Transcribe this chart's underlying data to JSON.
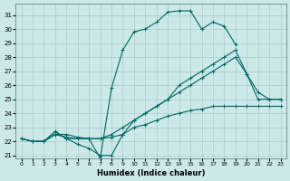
{
  "xlabel": "Humidex (Indice chaleur)",
  "xlim": [
    -0.5,
    23.5
  ],
  "ylim": [
    20.8,
    31.8
  ],
  "yticks": [
    21,
    22,
    23,
    24,
    25,
    26,
    27,
    28,
    29,
    30,
    31
  ],
  "xticks": [
    0,
    1,
    2,
    3,
    4,
    5,
    6,
    7,
    8,
    9,
    10,
    11,
    12,
    13,
    14,
    15,
    16,
    17,
    18,
    19,
    20,
    21,
    22,
    23
  ],
  "bg_color": "#cce8e8",
  "grid_color": "#aacccc",
  "line_color": "#006666",
  "lines": [
    {
      "x": [
        0,
        1,
        2,
        3,
        4,
        5,
        6,
        7,
        8,
        9,
        10,
        11,
        12,
        13,
        14,
        15,
        16,
        17,
        18,
        19
      ],
      "y": [
        22.2,
        22,
        22,
        22.7,
        22.2,
        22.2,
        22.2,
        20.8,
        25.8,
        28.5,
        29.8,
        30.0,
        30.5,
        31.2,
        31.3,
        31.3,
        30.0,
        30.5,
        30.2,
        28.9
      ]
    },
    {
      "x": [
        0,
        1,
        2,
        3,
        4,
        5,
        6,
        7,
        8,
        9,
        10,
        11,
        12,
        13,
        14,
        15,
        16,
        17,
        18,
        19,
        20,
        21,
        22,
        23
      ],
      "y": [
        22.2,
        22,
        22,
        22.7,
        22.2,
        21.8,
        21.5,
        21.0,
        21.0,
        22.5,
        23.5,
        24,
        24.5,
        25,
        26,
        26.5,
        27,
        27.5,
        28,
        28.5,
        26.8,
        25,
        25,
        25
      ]
    },
    {
      "x": [
        0,
        1,
        2,
        3,
        4,
        5,
        6,
        7,
        8,
        9,
        10,
        11,
        12,
        13,
        14,
        15,
        16,
        17,
        18,
        19,
        20,
        21,
        22,
        23
      ],
      "y": [
        22.2,
        22,
        22,
        22.5,
        22.5,
        22.3,
        22.2,
        22.2,
        22.5,
        23.0,
        23.5,
        24.0,
        24.5,
        25,
        25.5,
        26,
        26.5,
        27.0,
        27.5,
        28.0,
        26.8,
        25.5,
        25.0,
        25.0
      ]
    },
    {
      "x": [
        0,
        1,
        2,
        3,
        4,
        5,
        6,
        7,
        8,
        9,
        10,
        11,
        12,
        13,
        14,
        15,
        16,
        17,
        18,
        19,
        20,
        21,
        22,
        23
      ],
      "y": [
        22.2,
        22,
        22,
        22.5,
        22.3,
        22.2,
        22.2,
        22.2,
        22.3,
        22.5,
        23.0,
        23.2,
        23.5,
        23.8,
        24.0,
        24.2,
        24.3,
        24.5,
        24.5,
        24.5,
        24.5,
        24.5,
        24.5,
        24.5
      ]
    }
  ]
}
